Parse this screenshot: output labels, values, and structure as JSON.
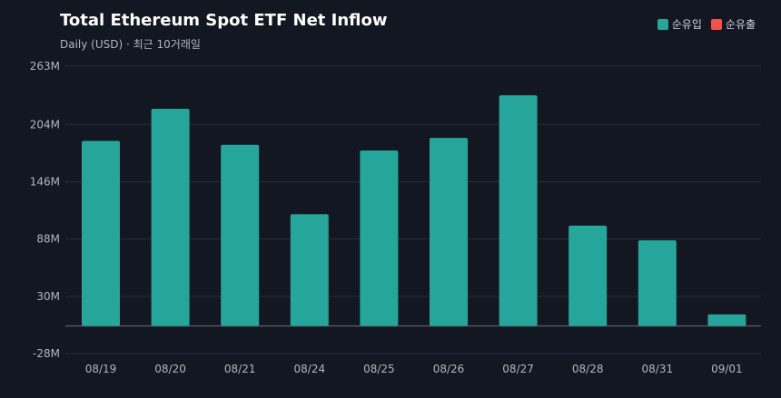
{
  "title": "Total Ethereum Spot ETF Net Inflow",
  "subtitle": "Daily (USD) · 최근 10거래일",
  "legend": [
    {
      "label": "순유입",
      "color": "#26a69a"
    },
    {
      "label": "순유출",
      "color": "#ef5350"
    }
  ],
  "chart_data": {
    "type": "bar",
    "title": "Total Ethereum Spot ETF Net Inflow",
    "subtitle": "Daily (USD) · 최근 10거래일",
    "categories": [
      "08/19",
      "08/20",
      "08/21",
      "08/24",
      "08/25",
      "08/26",
      "08/27",
      "08/28",
      "08/31",
      "09/01"
    ],
    "series": [
      {
        "name": "순유입",
        "values": [
          187.4,
          219.9,
          183.4,
          113.1,
          177.6,
          190.4,
          233.5,
          101.5,
          86.6,
          11.7
        ]
      }
    ],
    "ylim": [
      -28,
      263
    ],
    "yticks": [
      -28,
      30,
      88,
      146,
      204,
      263
    ],
    "ytick_labels": [
      "-28M",
      "30M",
      "88M",
      "146M",
      "204M",
      "263M"
    ],
    "xlabel": "",
    "ylabel": "",
    "grid": true,
    "legend_position": "top-right",
    "colors": {
      "positive": "#26a69a",
      "negative": "#ef5350",
      "grid": "#2a2e39",
      "zero_line": "#5d606b"
    }
  }
}
